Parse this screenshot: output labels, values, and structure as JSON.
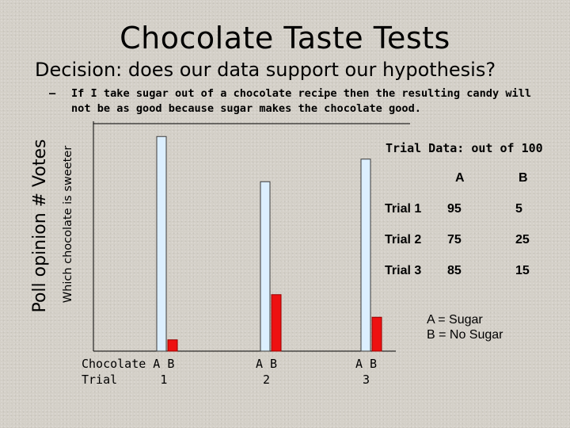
{
  "slide": {
    "title": "Chocolate Taste Tests",
    "decision": "Decision: does our data support our hypothesis?",
    "bullet_dash": "–",
    "hypothesis_line1": "If I take sugar out of a chocolate recipe then the resulting candy will",
    "hypothesis_line2": "not be as good because sugar makes the chocolate good."
  },
  "chart_data": {
    "type": "bar",
    "title": "",
    "ylabel_outer": "Poll opinion # Votes",
    "ylabel_inner": "Which chocolate is sweeter",
    "ylim": [
      0,
      100
    ],
    "grid": false,
    "categories": [
      "Chocolate A B\nTrial      1",
      "A B\n 2",
      "A B\n 3"
    ],
    "series": [
      {
        "name": "A",
        "values": [
          95,
          75,
          85
        ]
      },
      {
        "name": "B",
        "values": [
          5,
          25,
          15
        ]
      }
    ],
    "colors": {
      "A": "#dcefff",
      "B": "#ee1111"
    }
  },
  "table": {
    "title": "Trial Data: out of 100",
    "header": [
      "",
      "A",
      "B"
    ],
    "rows": [
      [
        "Trial 1",
        "95",
        "5"
      ],
      [
        "Trial 2",
        "75",
        "25"
      ],
      [
        "Trial 3",
        "85",
        "15"
      ]
    ]
  },
  "legend": {
    "line1": "A = Sugar",
    "line2": "B = No Sugar"
  }
}
